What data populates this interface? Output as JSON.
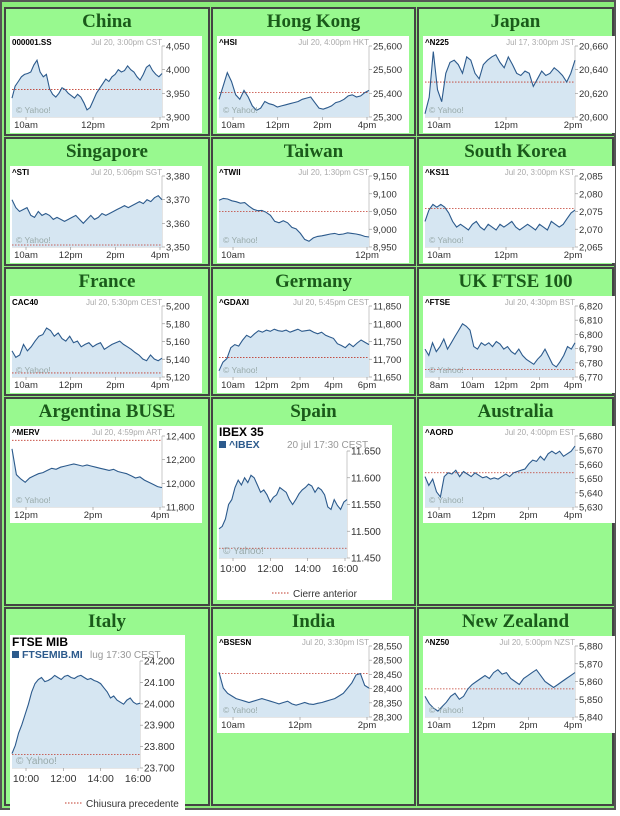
{
  "page": {
    "cells": [
      {
        "title": "China",
        "chart": {
          "symbol": "000001.SS",
          "date": "Jul 20, 3:00pm CST",
          "yticks": [
            "4,050",
            "4,000",
            "3,950",
            "3,900"
          ],
          "xticks": [
            "10am",
            "12pm",
            "2pm"
          ],
          "credit": "© Yahoo!",
          "style": "small",
          "ylim": [
            3900,
            4050
          ],
          "prev": 3958,
          "series": [
            3940,
            3965,
            3975,
            3985,
            3990,
            3992,
            3995,
            4010,
            4020,
            3995,
            3985,
            3990,
            3960,
            3948,
            3942,
            3950,
            3962,
            3958,
            3950,
            3945,
            3940,
            3948,
            3942,
            3930,
            3915,
            3920,
            3935,
            3950,
            3960,
            3970,
            3980,
            3975,
            3985,
            3990,
            4000,
            3995,
            3998,
            4008,
            4000,
            3995,
            3985,
            3978,
            3990,
            4005,
            4010,
            3998,
            3990,
            3985,
            3992
          ]
        }
      },
      {
        "title": "Hong Kong",
        "chart": {
          "symbol": "^HSI",
          "date": "Jul 20, 4:00pm HKT",
          "yticks": [
            "25,600",
            "25,500",
            "25,400",
            "25,300"
          ],
          "xticks": [
            "10am",
            "12pm",
            "2pm",
            "4pm"
          ],
          "credit": "© Yahoo!",
          "style": "small",
          "ylim": [
            25300,
            25620
          ],
          "prev": 25410,
          "series": [
            25380,
            25440,
            25500,
            25460,
            25400,
            25380,
            25420,
            25390,
            25350,
            25330,
            25340,
            25370,
            25360,
            25355,
            25345,
            25350,
            25355,
            25360,
            25365,
            25370,
            25380,
            25385,
            25390,
            25365,
            25340,
            25335,
            25342,
            25350,
            25365,
            25370,
            25380,
            25395,
            25400,
            25390,
            25395,
            25410,
            25420
          ]
        }
      },
      {
        "title": "Japan",
        "chart": {
          "symbol": "^N225",
          "date": "Jul 17, 3:00pm JST",
          "yticks": [
            "20,660",
            "20,640",
            "20,620",
            "20,600"
          ],
          "xticks": [
            "10am",
            "12pm",
            "2pm"
          ],
          "credit": "© Yahoo!",
          "style": "small",
          "ylim": [
            20600,
            20665
          ],
          "prev": 20632,
          "series": [
            20603,
            20618,
            20660,
            20625,
            20614,
            20640,
            20650,
            20652,
            20648,
            20640,
            20655,
            20652,
            20640,
            20635,
            20648,
            20652,
            20655,
            20657,
            20650,
            20645,
            20655,
            20648,
            20640,
            20638,
            20642,
            20640,
            20628,
            20635,
            20642,
            20638,
            20640,
            20645,
            20642,
            20638,
            20632,
            20640,
            20652
          ]
        }
      },
      {
        "title": "Singapore",
        "chart": {
          "symbol": "^STI",
          "date": "Jul 20, 5:06pm SGT",
          "yticks": [
            "3,380",
            "3,370",
            "3,360",
            "3,350"
          ],
          "xticks": [
            "10am",
            "12pm",
            "2pm",
            "4pm"
          ],
          "credit": "© Yahoo!",
          "style": "small",
          "ylim": [
            3348,
            3384
          ],
          "prev": 3349,
          "series": [
            3372,
            3368,
            3366,
            3367,
            3368,
            3364,
            3363,
            3366,
            3364,
            3365,
            3364,
            3362,
            3363,
            3362,
            3361,
            3362,
            3363,
            3364,
            3362,
            3360,
            3362,
            3364,
            3362,
            3363,
            3365,
            3364,
            3365,
            3366,
            3367,
            3368,
            3369,
            3368,
            3369,
            3370,
            3371,
            3370,
            3372,
            3371,
            3373,
            3374,
            3372
          ]
        }
      },
      {
        "title": "Taiwan",
        "chart": {
          "symbol": "^TWII",
          "date": "Jul 20, 1:30pm CST",
          "yticks": [
            "9,150",
            "9,100",
            "9,050",
            "9,000",
            "8,950"
          ],
          "xticks": [
            "10am",
            "12pm"
          ],
          "credit": "© Yahoo!",
          "style": "small",
          "ylim": [
            8925,
            9160
          ],
          "prev": 9042,
          "series": [
            9080,
            9086,
            9084,
            9078,
            9075,
            9070,
            9072,
            9060,
            9050,
            9045,
            9046,
            9040,
            9030,
            9010,
            9005,
            9012,
            9005,
            8990,
            8985,
            8970,
            8950,
            8944,
            8955,
            8960,
            8962,
            8965,
            8968,
            8970,
            8966,
            8968,
            8972,
            8970,
            8968,
            8965,
            8960,
            8958
          ]
        }
      },
      {
        "title": "South Korea",
        "chart": {
          "symbol": "^KS11",
          "date": "Jul 20, 3:00pm KST",
          "yticks": [
            "2,085",
            "2,080",
            "2,075",
            "2,070",
            "2,065"
          ],
          "xticks": [
            "10am",
            "12pm",
            "2pm"
          ],
          "credit": "© Yahoo!",
          "style": "small",
          "ylim": [
            2063,
            2088
          ],
          "prev": 2076.5,
          "series": [
            2072,
            2076,
            2078,
            2077,
            2078,
            2077,
            2075,
            2072,
            2070,
            2071,
            2070,
            2069,
            2071,
            2072,
            2070,
            2069,
            2071,
            2070,
            2069,
            2071,
            2070,
            2071,
            2072,
            2070,
            2069,
            2070,
            2071,
            2070,
            2069,
            2071,
            2070,
            2069,
            2072,
            2071,
            2070,
            2071,
            2073,
            2075,
            2076
          ]
        }
      },
      {
        "title": "France",
        "chart": {
          "symbol": "CAC40",
          "date": "Jul 20, 5:30pm CEST",
          "yticks": [
            "5,200",
            "5,180",
            "5,160",
            "5,140",
            "5,120"
          ],
          "xticks": [
            "10am",
            "12pm",
            "2pm",
            "4pm"
          ],
          "credit": "© Yahoo!",
          "style": "small",
          "ylim": [
            5118,
            5205
          ],
          "prev": 5123,
          "series": [
            5150,
            5142,
            5145,
            5158,
            5150,
            5155,
            5162,
            5168,
            5170,
            5178,
            5175,
            5168,
            5172,
            5165,
            5162,
            5168,
            5160,
            5162,
            5155,
            5158,
            5160,
            5155,
            5158,
            5160,
            5152,
            5155,
            5158,
            5160,
            5162,
            5158,
            5155,
            5152,
            5148,
            5145,
            5140,
            5138,
            5145,
            5140,
            5138,
            5141
          ]
        }
      },
      {
        "title": "Germany",
        "chart": {
          "symbol": "^GDAXI",
          "date": "Jul 20, 5:45pm CEST",
          "yticks": [
            "11,850",
            "11,800",
            "11,750",
            "11,700",
            "11,650"
          ],
          "xticks": [
            "10am",
            "12pm",
            "2pm",
            "4pm",
            "6pm"
          ],
          "credit": "© Yahoo!",
          "style": "small",
          "ylim": [
            11640,
            11870
          ],
          "prev": 11703,
          "series": [
            11660,
            11688,
            11700,
            11735,
            11745,
            11740,
            11760,
            11775,
            11768,
            11780,
            11790,
            11785,
            11792,
            11788,
            11795,
            11790,
            11788,
            11792,
            11785,
            11790,
            11795,
            11788,
            11790,
            11792,
            11785,
            11780,
            11785,
            11775,
            11770,
            11765,
            11748,
            11742,
            11735,
            11748,
            11738,
            11750,
            11760,
            11752,
            11745
          ]
        }
      },
      {
        "title": "UK FTSE 100",
        "chart": {
          "symbol": "^FTSE",
          "date": "Jul 20, 4:30pm BST",
          "yticks": [
            "6,820",
            "6,810",
            "6,800",
            "6,790",
            "6,780",
            "6,770"
          ],
          "xticks": [
            "8am",
            "10am",
            "12pm",
            "2pm",
            "4pm"
          ],
          "credit": "© Yahoo!",
          "style": "small",
          "ylim": [
            6768,
            6824
          ],
          "prev": 6774,
          "series": [
            6790,
            6785,
            6795,
            6788,
            6792,
            6798,
            6790,
            6795,
            6800,
            6805,
            6810,
            6808,
            6805,
            6792,
            6790,
            6795,
            6793,
            6795,
            6792,
            6796,
            6794,
            6790,
            6792,
            6788,
            6786,
            6790,
            6785,
            6782,
            6780,
            6778,
            6782,
            6785,
            6790,
            6784,
            6778,
            6776,
            6780,
            6785,
            6792,
            6790,
            6795
          ]
        }
      },
      {
        "title": "Argentina BUSE",
        "chart": {
          "symbol": "^MERV",
          "date": "Jul 20, 4:59pm ART",
          "yticks": [
            "12,400",
            "12,200",
            "12,000",
            "11,800"
          ],
          "xticks": [
            "12pm",
            "2pm",
            "4pm"
          ],
          "credit": "© Yahoo!",
          "style": "small",
          "ylim": [
            11780,
            12440
          ],
          "prev": 12400,
          "series": [
            12320,
            12080,
            12040,
            12010,
            12050,
            12070,
            12090,
            12100,
            12120,
            12140,
            12130,
            12150,
            12160,
            12170,
            12180,
            12170,
            12160,
            12170,
            12160,
            12150,
            12140,
            12130,
            12120,
            12130,
            12110,
            12100,
            12090,
            12070,
            12050,
            12060,
            12030,
            12010,
            11990,
            11970,
            11960
          ]
        }
      },
      {
        "title": "Spain",
        "chart": {
          "style": "big",
          "name": "IBEX 35",
          "symbol": "^IBEX",
          "date": "20 jul 17:30 CEST",
          "yticks": [
            "11.650",
            "11.600",
            "11.550",
            "11.500",
            "11.450"
          ],
          "xticks": [
            "10:00",
            "12:00",
            "14:00",
            "16:00"
          ],
          "credit": "© Yahoo!",
          "legend": "Cierre anterior",
          "ylim": [
            11440,
            11660
          ],
          "prev": 11460,
          "series": [
            11500,
            11505,
            11520,
            11550,
            11560,
            11585,
            11600,
            11590,
            11605,
            11595,
            11610,
            11605,
            11590,
            11575,
            11580,
            11570,
            11555,
            11565,
            11570,
            11585,
            11580,
            11575,
            11560,
            11550,
            11560,
            11572,
            11580,
            11585,
            11592,
            11588,
            11575,
            11585,
            11580,
            11570,
            11545,
            11540,
            11560,
            11548,
            11540,
            11555,
            11560
          ]
        }
      },
      {
        "title": "Australia",
        "chart": {
          "symbol": "^AORD",
          "date": "Jul 20, 4:00pm EST",
          "yticks": [
            "5,680",
            "5,670",
            "5,660",
            "5,650",
            "5,640",
            "5,630"
          ],
          "xticks": [
            "10am",
            "12pm",
            "2pm",
            "4pm"
          ],
          "credit": "© Yahoo!",
          "style": "small",
          "ylim": [
            5628,
            5684
          ],
          "prev": 5655,
          "series": [
            5652,
            5645,
            5650,
            5640,
            5636,
            5652,
            5655,
            5654,
            5657,
            5652,
            5656,
            5654,
            5652,
            5655,
            5653,
            5651,
            5652,
            5650,
            5651,
            5650,
            5652,
            5654,
            5652,
            5655,
            5656,
            5657,
            5658,
            5662,
            5665,
            5664,
            5668,
            5665,
            5670,
            5672,
            5670,
            5672,
            5668,
            5670,
            5672,
            5676
          ]
        }
      },
      {
        "title": "Italy",
        "chart": {
          "style": "big",
          "name": "FTSE MIB",
          "symbol": "FTSEMIB.MI",
          "date": "lug 17:30 CEST",
          "yticks": [
            "24.200",
            "24.100",
            "24.000",
            "23.900",
            "23.800",
            "23.700"
          ],
          "xticks": [
            "10:00",
            "12:00",
            "14:00",
            "16:00"
          ],
          "credit": "© Yahoo!",
          "legend": "Chiusura precedente",
          "ylim": [
            23690,
            24210
          ],
          "prev": 23755,
          "series": [
            23760,
            23800,
            23860,
            23900,
            23950,
            24000,
            24060,
            24100,
            24120,
            24130,
            24110,
            24115,
            24125,
            24140,
            24130,
            24120,
            24135,
            24140,
            24130,
            24125,
            24135,
            24140,
            24130,
            24120,
            24125,
            24115,
            24110,
            24100,
            24080,
            24060,
            24030,
            24040,
            24020,
            24010,
            24000,
            24020,
            24030,
            24010,
            24000,
            24005
          ]
        }
      },
      {
        "title": "India",
        "chart": {
          "symbol": "^BSESN",
          "date": "Jul 20, 3:30pm IST",
          "yticks": [
            "28,550",
            "28,500",
            "28,450",
            "28,400",
            "28,350",
            "28,300"
          ],
          "xticks": [
            "10am",
            "12pm",
            "2pm"
          ],
          "credit": "© Yahoo!",
          "style": "small",
          "ylim": [
            28290,
            28560
          ],
          "prev": 28455,
          "series": [
            28460,
            28400,
            28380,
            28370,
            28360,
            28355,
            28350,
            28345,
            28350,
            28355,
            28360,
            28355,
            28350,
            28345,
            28340,
            28345,
            28350,
            28340,
            28335,
            28340,
            28345,
            28340,
            28338,
            28342,
            28345,
            28350,
            28355,
            28360,
            28370,
            28380,
            28400,
            28420,
            28450,
            28455,
            28410,
            28400
          ]
        }
      },
      {
        "title": "New Zealand",
        "chart": {
          "symbol": "^NZ50",
          "date": "Jul 20, 5:00pm NZST",
          "yticks": [
            "5,880",
            "5,870",
            "5,860",
            "5,850",
            "5,840"
          ],
          "xticks": [
            "10am",
            "12pm",
            "2pm",
            "4pm"
          ],
          "credit": "© Yahoo!",
          "style": "small",
          "ylim": [
            5836,
            5884
          ],
          "prev": 5855,
          "series": [
            5850,
            5845,
            5842,
            5840,
            5843,
            5846,
            5850,
            5852,
            5848,
            5850,
            5855,
            5858,
            5860,
            5862,
            5864,
            5862,
            5866,
            5868,
            5865,
            5866,
            5862,
            5860,
            5858,
            5862,
            5864,
            5866,
            5868,
            5864,
            5860,
            5858,
            5856,
            5858,
            5860,
            5862,
            5864,
            5866
          ]
        }
      }
    ]
  },
  "colors": {
    "cell_bg": "#98f98f",
    "title": "#1a5a1a",
    "line": "#2c5a8c",
    "fill": "#d6e6f2",
    "prev": "#c0392b",
    "axis": "#999999"
  }
}
